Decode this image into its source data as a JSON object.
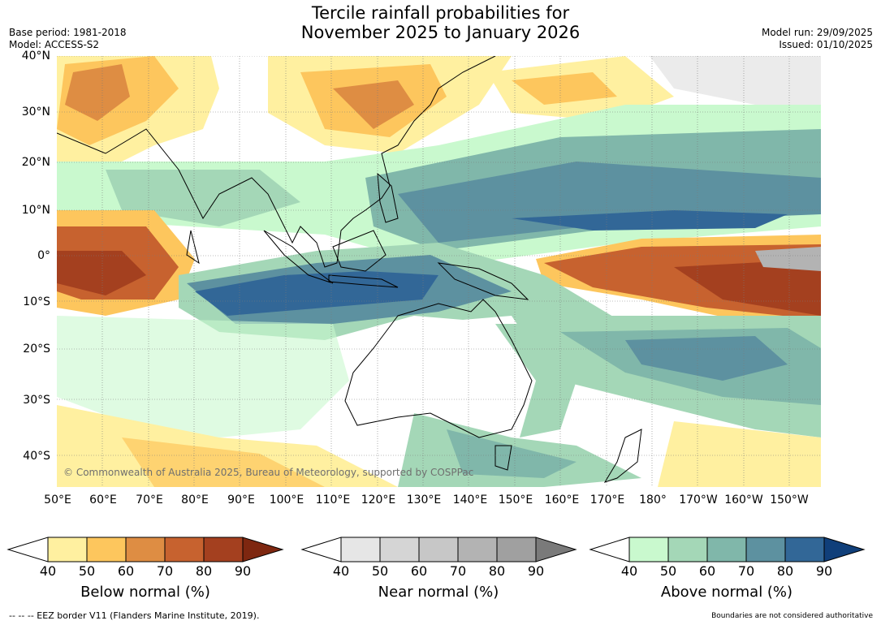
{
  "title": {
    "line1": "Tercile rainfall probabilities for",
    "line2": "November 2025 to January 2026"
  },
  "meta_left": {
    "base_period": "Base period: 1981-2018",
    "model": "Model: ACCESS-S2"
  },
  "meta_right": {
    "model_run": "Model run: 29/09/2025",
    "issued": "Issued: 01/10/2025"
  },
  "map": {
    "lat_ticks": [
      "40°N",
      "30°N",
      "20°N",
      "10°N",
      "0°",
      "10°S",
      "20°S",
      "30°S",
      "40°S"
    ],
    "lon_ticks": [
      "50°E",
      "60°E",
      "70°E",
      "80°E",
      "90°E",
      "100°E",
      "110°E",
      "120°E",
      "130°E",
      "140°E",
      "150°E",
      "160°E",
      "170°E",
      "180°",
      "170°W",
      "160°W",
      "150°W"
    ],
    "copyright": "© Commonwealth of Australia 2025, Bureau of Meteorology, supported by COSPPac"
  },
  "colorbars": [
    {
      "label": "Below normal (%)",
      "ticks": [
        "40",
        "50",
        "60",
        "70",
        "80",
        "90"
      ],
      "colors": [
        "#fff0a0",
        "#fdc65d",
        "#de8d43",
        "#c7622f",
        "#a4401f",
        "#7e2710"
      ]
    },
    {
      "label": "Near normal (%)",
      "ticks": [
        "40",
        "50",
        "60",
        "70",
        "80",
        "90"
      ],
      "colors": [
        "#e6e6e6",
        "#d5d5d5",
        "#c7c7c7",
        "#b3b3b3",
        "#a0a0a0",
        "#7a7a7a"
      ]
    },
    {
      "label": "Above normal (%)",
      "ticks": [
        "40",
        "50",
        "60",
        "70",
        "80",
        "90"
      ],
      "colors": [
        "#c9f9ce",
        "#a4d7b7",
        "#80b7aa",
        "#5d91a0",
        "#326797",
        "#103f7a"
      ]
    }
  ],
  "footer": {
    "left": "--  --  -- EEZ border V11 (Flanders Marine Institute, 2019).",
    "right": "Boundaries are not considered authoritative"
  }
}
